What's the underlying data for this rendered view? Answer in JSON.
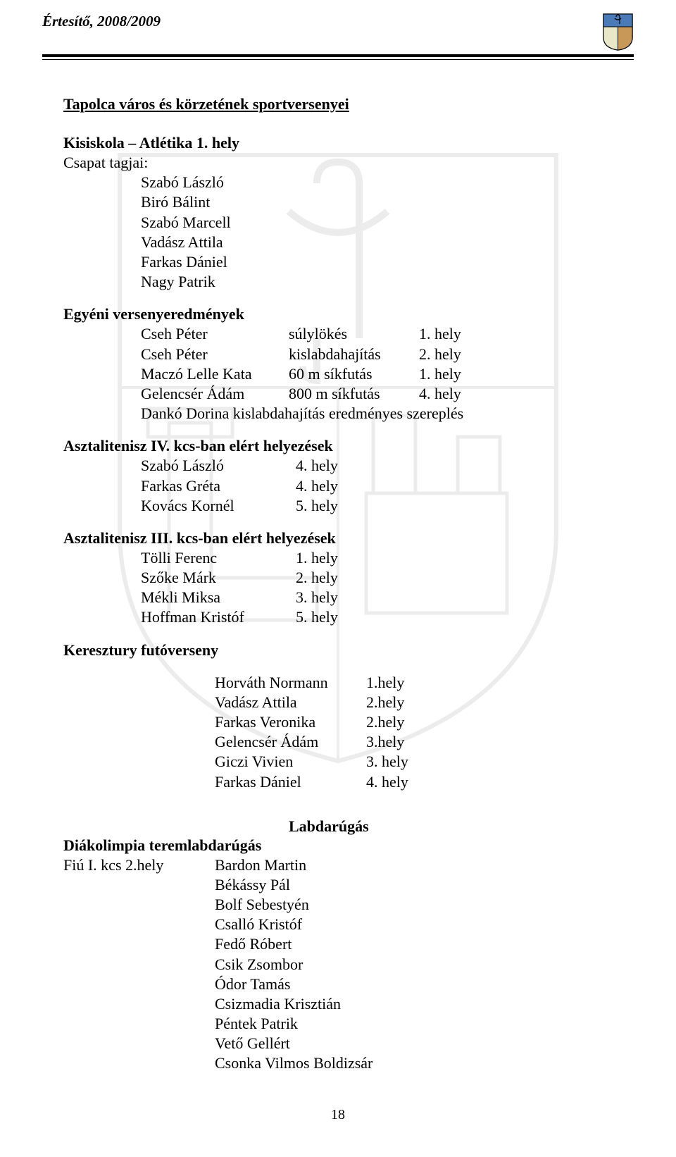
{
  "header": {
    "title": "Értesítő, 2008/2009"
  },
  "main": {
    "title": "Tapolca város és körzetének sportversenyei",
    "kisiskola": {
      "heading": "Kisiskola – Atlétika 1. hely",
      "csapat_label": "Csapat tagjai:",
      "tagok": [
        "Szabó László",
        "Biró Bálint",
        "Szabó Marcell",
        "Vadász Attila",
        "Farkas Dániel",
        "Nagy Patrik"
      ]
    },
    "egyeni": {
      "heading": "Egyéni versenyeredmények",
      "rows": [
        {
          "name": "Cseh Péter",
          "event": "súlylökés",
          "place": "1. hely"
        },
        {
          "name": "Cseh Péter",
          "event": "kislabdahajítás",
          "place": "2. hely"
        },
        {
          "name": "Maczó Lelle Kata",
          "event": "60 m síkfutás",
          "place": "1. hely"
        },
        {
          "name": "Gelencsér Ádám",
          "event": "800 m síkfutás",
          "place": "4. hely"
        }
      ],
      "extra": "Dankó Dorina kislabdahajítás eredményes szereplés"
    },
    "aszt4": {
      "heading": "Asztalitenisz IV. kcs-ban elért helyezések",
      "rows": [
        {
          "name": "Szabó László",
          "place": "4. hely"
        },
        {
          "name": "Farkas Gréta",
          "place": "4. hely"
        },
        {
          "name": "Kovács Kornél",
          "place": "5. hely"
        }
      ]
    },
    "aszt3": {
      "heading": "Asztalitenisz III. kcs-ban elért helyezések",
      "rows": [
        {
          "name": "Tölli Ferenc",
          "place": "1. hely"
        },
        {
          "name": "Szőke Márk",
          "place": "2. hely"
        },
        {
          "name": "Mékli Miksa",
          "place": "3. hely"
        },
        {
          "name": "Hoffman Kristóf",
          "place": "5. hely"
        }
      ]
    },
    "keresztury": {
      "heading": "Keresztury futóverseny",
      "rows": [
        {
          "name": "Horváth Normann",
          "place": "1.hely"
        },
        {
          "name": "Vadász Attila",
          "place": "2.hely"
        },
        {
          "name": "Farkas Veronika",
          "place": "2.hely"
        },
        {
          "name": "Gelencsér Ádám",
          "place": "3.hely"
        },
        {
          "name": "Giczi Vivien",
          "place": "3. hely"
        },
        {
          "name": "Farkas Dániel",
          "place": "4. hely"
        }
      ]
    },
    "labdarugas": {
      "heading": "Labdarúgás",
      "line1_label": "Diákolimpia teremlabdarúgás",
      "kcs_label": "Fiú I. kcs     2.hely",
      "players": [
        "Bardon Martin",
        "Békássy Pál",
        "Bolf Sebestyén",
        "Csalló Kristóf",
        "Fedő Róbert",
        "Csik Zsombor",
        "Ódor Tamás",
        "Csizmadia Krisztián",
        "Péntek Patrik",
        "Vető Gellért",
        "Csonka Vilmos Boldizsár"
      ]
    }
  },
  "page_number": "18",
  "colors": {
    "text": "#000000",
    "background": "#ffffff",
    "watermark": "#d0d0d0"
  }
}
